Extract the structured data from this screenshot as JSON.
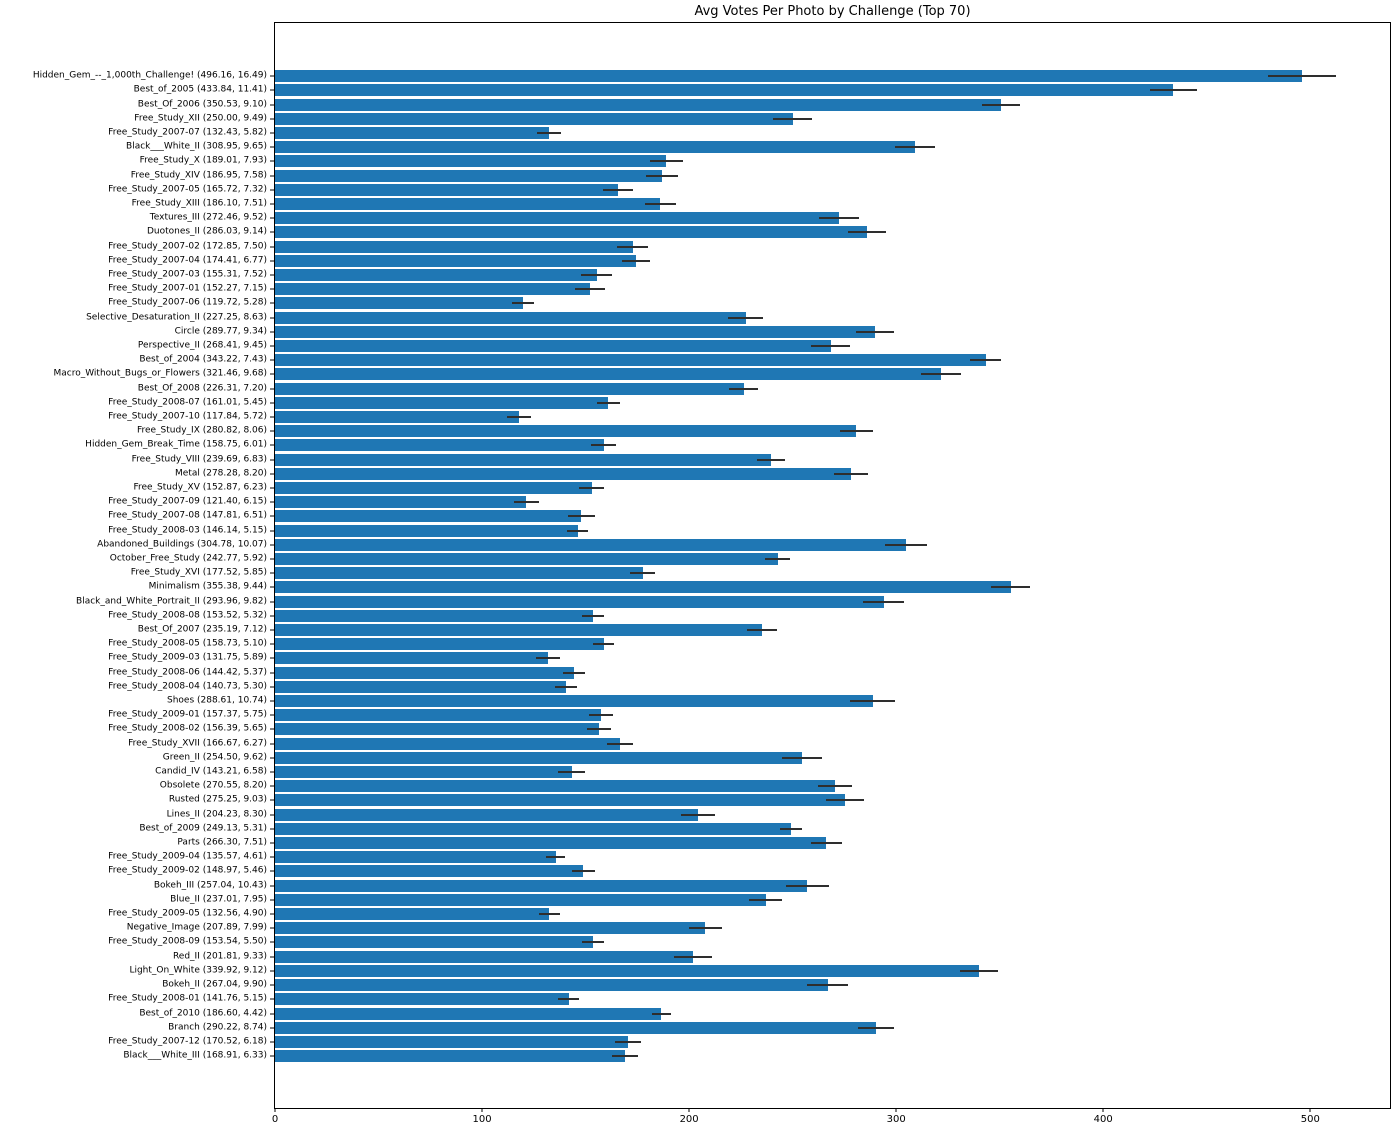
{
  "chart_data": {
    "type": "bar",
    "orientation": "horizontal",
    "title": "Avg Votes Per Photo by Challenge (Top 70)",
    "xlabel": "",
    "ylabel": "",
    "xlim": [
      0,
      538.5
    ],
    "xticks": [
      0,
      100,
      200,
      300,
      400,
      500
    ],
    "grid": false,
    "legend": false,
    "bar_color": "#1f77b4",
    "error_color": "#2e2e2e",
    "label_format": "{name} ({value}, {error})",
    "items": [
      {
        "name": "Hidden_Gem_--_1,000th_Challenge!",
        "value": 496.16,
        "error": 16.49
      },
      {
        "name": "Best_of_2005",
        "value": 433.84,
        "error": 11.41
      },
      {
        "name": "Best_Of_2006",
        "value": 350.53,
        "error": 9.1
      },
      {
        "name": "Free_Study_XII",
        "value": 250.0,
        "error": 9.49
      },
      {
        "name": "Free_Study_2007-07",
        "value": 132.43,
        "error": 5.82
      },
      {
        "name": "Black___White_II",
        "value": 308.95,
        "error": 9.65
      },
      {
        "name": "Free_Study_X",
        "value": 189.01,
        "error": 7.93
      },
      {
        "name": "Free_Study_XIV",
        "value": 186.95,
        "error": 7.58
      },
      {
        "name": "Free_Study_2007-05",
        "value": 165.72,
        "error": 7.32
      },
      {
        "name": "Free_Study_XIII",
        "value": 186.1,
        "error": 7.51
      },
      {
        "name": "Textures_III",
        "value": 272.46,
        "error": 9.52
      },
      {
        "name": "Duotones_II",
        "value": 286.03,
        "error": 9.14
      },
      {
        "name": "Free_Study_2007-02",
        "value": 172.85,
        "error": 7.5
      },
      {
        "name": "Free_Study_2007-04",
        "value": 174.41,
        "error": 6.77
      },
      {
        "name": "Free_Study_2007-03",
        "value": 155.31,
        "error": 7.52
      },
      {
        "name": "Free_Study_2007-01",
        "value": 152.27,
        "error": 7.15
      },
      {
        "name": "Free_Study_2007-06",
        "value": 119.72,
        "error": 5.28
      },
      {
        "name": "Selective_Desaturation_II",
        "value": 227.25,
        "error": 8.63
      },
      {
        "name": "Circle",
        "value": 289.77,
        "error": 9.34
      },
      {
        "name": "Perspective_II",
        "value": 268.41,
        "error": 9.45
      },
      {
        "name": "Best_of_2004",
        "value": 343.22,
        "error": 7.43
      },
      {
        "name": "Macro_Without_Bugs_or_Flowers",
        "value": 321.46,
        "error": 9.68
      },
      {
        "name": "Best_Of_2008",
        "value": 226.31,
        "error": 7.2
      },
      {
        "name": "Free_Study_2008-07",
        "value": 161.01,
        "error": 5.45
      },
      {
        "name": "Free_Study_2007-10",
        "value": 117.84,
        "error": 5.72
      },
      {
        "name": "Free_Study_IX",
        "value": 280.82,
        "error": 8.06
      },
      {
        "name": "Hidden_Gem_Break_Time",
        "value": 158.75,
        "error": 6.01
      },
      {
        "name": "Free_Study_VIII",
        "value": 239.69,
        "error": 6.83
      },
      {
        "name": "Metal",
        "value": 278.28,
        "error": 8.2
      },
      {
        "name": "Free_Study_XV",
        "value": 152.87,
        "error": 6.23
      },
      {
        "name": "Free_Study_2007-09",
        "value": 121.4,
        "error": 6.15
      },
      {
        "name": "Free_Study_2007-08",
        "value": 147.81,
        "error": 6.51
      },
      {
        "name": "Free_Study_2008-03",
        "value": 146.14,
        "error": 5.15
      },
      {
        "name": "Abandoned_Buildings",
        "value": 304.78,
        "error": 10.07
      },
      {
        "name": "October_Free_Study",
        "value": 242.77,
        "error": 5.92
      },
      {
        "name": "Free_Study_XVI",
        "value": 177.52,
        "error": 5.85
      },
      {
        "name": "Minimalism",
        "value": 355.38,
        "error": 9.44
      },
      {
        "name": "Black_and_White_Portrait_II",
        "value": 293.96,
        "error": 9.82
      },
      {
        "name": "Free_Study_2008-08",
        "value": 153.52,
        "error": 5.32
      },
      {
        "name": "Best_Of_2007",
        "value": 235.19,
        "error": 7.12
      },
      {
        "name": "Free_Study_2008-05",
        "value": 158.73,
        "error": 5.1
      },
      {
        "name": "Free_Study_2009-03",
        "value": 131.75,
        "error": 5.89
      },
      {
        "name": "Free_Study_2008-06",
        "value": 144.42,
        "error": 5.37
      },
      {
        "name": "Free_Study_2008-04",
        "value": 140.73,
        "error": 5.3
      },
      {
        "name": "Shoes",
        "value": 288.61,
        "error": 10.74
      },
      {
        "name": "Free_Study_2009-01",
        "value": 157.37,
        "error": 5.75
      },
      {
        "name": "Free_Study_2008-02",
        "value": 156.39,
        "error": 5.65
      },
      {
        "name": "Free_Study_XVII",
        "value": 166.67,
        "error": 6.27
      },
      {
        "name": "Green_II",
        "value": 254.5,
        "error": 9.62
      },
      {
        "name": "Candid_IV",
        "value": 143.21,
        "error": 6.58
      },
      {
        "name": "Obsolete",
        "value": 270.55,
        "error": 8.2
      },
      {
        "name": "Rusted",
        "value": 275.25,
        "error": 9.03
      },
      {
        "name": "Lines_II",
        "value": 204.23,
        "error": 8.3
      },
      {
        "name": "Best_of_2009",
        "value": 249.13,
        "error": 5.31
      },
      {
        "name": "Parts",
        "value": 266.3,
        "error": 7.51
      },
      {
        "name": "Free_Study_2009-04",
        "value": 135.57,
        "error": 4.61
      },
      {
        "name": "Free_Study_2009-02",
        "value": 148.97,
        "error": 5.46
      },
      {
        "name": "Bokeh_III",
        "value": 257.04,
        "error": 10.43
      },
      {
        "name": "Blue_II",
        "value": 237.01,
        "error": 7.95
      },
      {
        "name": "Free_Study_2009-05",
        "value": 132.56,
        "error": 4.9
      },
      {
        "name": "Negative_Image",
        "value": 207.89,
        "error": 7.99
      },
      {
        "name": "Free_Study_2008-09",
        "value": 153.54,
        "error": 5.5
      },
      {
        "name": "Red_II",
        "value": 201.81,
        "error": 9.33
      },
      {
        "name": "Light_On_White",
        "value": 339.92,
        "error": 9.12
      },
      {
        "name": "Bokeh_II",
        "value": 267.04,
        "error": 9.9
      },
      {
        "name": "Free_Study_2008-01",
        "value": 141.76,
        "error": 5.15
      },
      {
        "name": "Best_of_2010",
        "value": 186.6,
        "error": 4.42
      },
      {
        "name": "Branch",
        "value": 290.22,
        "error": 8.74
      },
      {
        "name": "Free_Study_2007-12",
        "value": 170.52,
        "error": 6.18
      },
      {
        "name": "Black___White_III",
        "value": 168.91,
        "error": 6.33
      }
    ]
  }
}
